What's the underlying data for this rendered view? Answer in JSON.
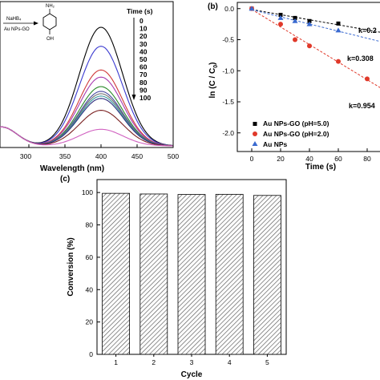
{
  "chart_data": [
    {
      "panel": "",
      "type": "line",
      "title": "",
      "xlabel": "Wavelength (nm)",
      "ylabel": "",
      "xlim": [
        260,
        500
      ],
      "xticks": [
        "300",
        "350",
        "400",
        "450",
        "500"
      ],
      "legend_title": "Time (s)",
      "legend_entries": [
        "0",
        "10",
        "20",
        "30",
        "40",
        "50",
        "60",
        "70",
        "80",
        "90",
        "100"
      ],
      "scheme": {
        "reagent": "NaHB₄",
        "catalyst": "Au NPs-GO",
        "top_group": "NH₂",
        "bottom_group": "OH"
      },
      "series": [
        {
          "name": "0",
          "color": "#000000",
          "peak": 1.0
        },
        {
          "name": "10",
          "color": "#3a3ad0",
          "peak": 0.84
        },
        {
          "name": "20",
          "color": "#d03a3a",
          "peak": 0.64
        },
        {
          "name": "30",
          "color": "#a83ab0",
          "peak": 0.58
        },
        {
          "name": "40",
          "color": "#2a8a2a",
          "peak": 0.5
        },
        {
          "name": "50",
          "color": "#4a4aa0",
          "peak": 0.46
        },
        {
          "name": "60",
          "color": "#6e6e6e",
          "peak": 0.44
        },
        {
          "name": "70",
          "color": "#3a9aa0",
          "peak": 0.42
        },
        {
          "name": "80",
          "color": "#303080",
          "peak": 0.4
        },
        {
          "name": "90",
          "color": "#7a2020",
          "peak": 0.3
        },
        {
          "name": "100",
          "color": "#d060c0",
          "peak": 0.14
        }
      ]
    },
    {
      "panel": "(b)",
      "type": "scatter",
      "title": "",
      "xlabel": "Time (s)",
      "ylabel": "ln (C / C",
      "ylabel_sub": "0",
      "ylabel_close": ")",
      "xlim": [
        -10,
        90
      ],
      "ylim": [
        -2.3,
        0.1
      ],
      "xticks": [
        0,
        20,
        40,
        60,
        80
      ],
      "yticks": [
        0.0,
        -0.5,
        -1.0,
        -1.5,
        -2.0
      ],
      "ytick_labels": [
        "0.0",
        "-0.5",
        "-1.0",
        "-1.5",
        "-2.0"
      ],
      "legend": [
        "Au NPs-GO (pH=5.0)",
        "Au NPs-GO (pH=2.0)",
        "Au NPs"
      ],
      "k_labels": [
        "k=0.2",
        "k=0.308",
        "k=0.954"
      ],
      "series": [
        {
          "name": "Au NPs-GO (pH=5.0)",
          "marker": "square",
          "color": "#000000",
          "x": [
            0,
            20,
            30,
            40,
            60
          ],
          "y": [
            0.0,
            -0.1,
            -0.15,
            -0.2,
            -0.24
          ]
        },
        {
          "name": "Au NPs-GO (pH=2.0)",
          "marker": "circle",
          "color": "#e0392a",
          "x": [
            0,
            20,
            30,
            40,
            60,
            80
          ],
          "y": [
            0.0,
            -0.25,
            -0.5,
            -0.6,
            -0.85,
            -1.13
          ]
        },
        {
          "name": "Au NPs",
          "marker": "triangle",
          "color": "#3a6ad0",
          "x": [
            0,
            20,
            30,
            40,
            60
          ],
          "y": [
            0.0,
            -0.15,
            -0.2,
            -0.25,
            -0.35
          ]
        }
      ]
    },
    {
      "panel": "(c)",
      "type": "bar",
      "title": "",
      "xlabel": "Cycle",
      "ylabel": "Conversion (%)",
      "categories": [
        "1",
        "2",
        "3",
        "4",
        "5"
      ],
      "values": [
        99.5,
        99.1,
        98.8,
        98.9,
        98.2
      ],
      "ylim": [
        0,
        100
      ],
      "yticks": [
        "0",
        "20",
        "40",
        "60",
        "80",
        "100"
      ]
    }
  ]
}
